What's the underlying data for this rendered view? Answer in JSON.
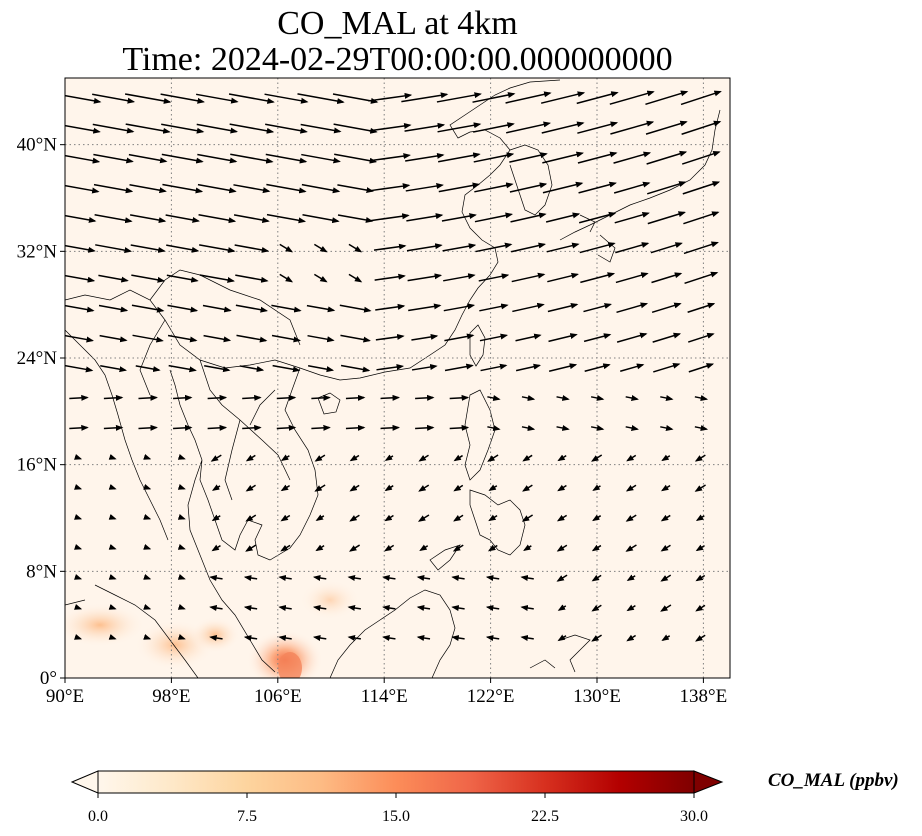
{
  "title": {
    "line1": "CO_MAL at 4km",
    "line2": "Time: 2024-02-29T00:00:00.000000000"
  },
  "colorbar": {
    "label": "CO_MAL (ppbv)",
    "ticks": [
      "0.0",
      "7.5",
      "15.0",
      "22.5",
      "30.0"
    ],
    "range": [
      0,
      30
    ],
    "colormap": "OrRd",
    "extend": "both"
  },
  "chart_data": {
    "type": "map",
    "lon_range": [
      90,
      140
    ],
    "lat_range": [
      0,
      45
    ],
    "x_ticks": [
      "90°E",
      "98°E",
      "106°E",
      "114°E",
      "122°E",
      "130°E",
      "138°E"
    ],
    "y_ticks": [
      "0°",
      "8°N",
      "16°N",
      "24°N",
      "32°N",
      "40°N"
    ],
    "grid": "dotted",
    "field_max_region": "southern South China Sea / Borneo (~106°E, 1°N)",
    "background_value_ppbv": 0.5,
    "hotspots": [
      {
        "lon": 106.5,
        "lat": 1.0,
        "value": 14
      },
      {
        "lon": 93.0,
        "lat": 3.5,
        "value": 6
      },
      {
        "lon": 98.5,
        "lat": 2.5,
        "value": 7
      },
      {
        "lon": 101.5,
        "lat": 3.0,
        "value": 5
      }
    ],
    "wind_vectors": "westerlies north of 22°N; northeasterlies over the South China Sea and Philippine Sea"
  },
  "colors": {
    "background_field": "#fff5eb",
    "coast": "#000000",
    "grid": "#808080",
    "arrows": "#000000"
  }
}
